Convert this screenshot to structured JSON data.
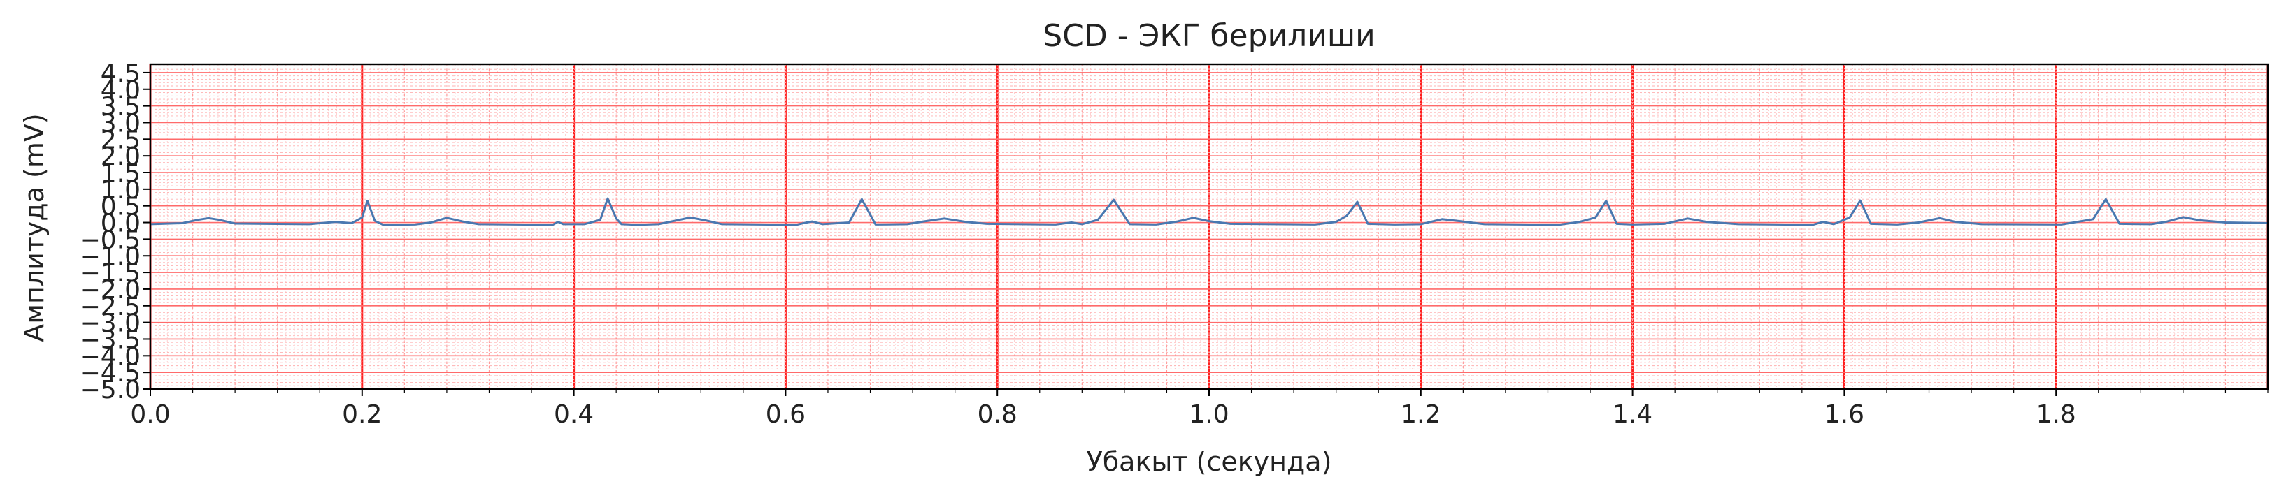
{
  "chart_data": {
    "type": "line",
    "title": "SCD - ЭКГ берилиши",
    "xlabel": "Убакыт (секунда)",
    "ylabel": "Амплитуда (mV)",
    "xlim": [
      0,
      2.0
    ],
    "ylim": [
      -5.0,
      4.75
    ],
    "grid": true,
    "x_ticks": [
      {
        "value": 0.0,
        "label": "0.0"
      },
      {
        "value": 0.2,
        "label": "0.2"
      },
      {
        "value": 0.4,
        "label": "0.4"
      },
      {
        "value": 0.6,
        "label": "0.6"
      },
      {
        "value": 0.8,
        "label": "0.8"
      },
      {
        "value": 1.0,
        "label": "1.0"
      },
      {
        "value": 1.2,
        "label": "1.2"
      },
      {
        "value": 1.4,
        "label": "1.4"
      },
      {
        "value": 1.6,
        "label": "1.6"
      },
      {
        "value": 1.8,
        "label": "1.8"
      }
    ],
    "y_ticks": [
      {
        "value": -5.0,
        "label": "−5.0"
      },
      {
        "value": -4.5,
        "label": "−4.5"
      },
      {
        "value": -4.0,
        "label": "−4.0"
      },
      {
        "value": -3.5,
        "label": "−3.5"
      },
      {
        "value": -3.0,
        "label": "−3.0"
      },
      {
        "value": -2.5,
        "label": "−2.5"
      },
      {
        "value": -2.0,
        "label": "−2.0"
      },
      {
        "value": -1.5,
        "label": "−1.5"
      },
      {
        "value": -1.0,
        "label": "−1.0"
      },
      {
        "value": -0.5,
        "label": "−0.5"
      },
      {
        "value": 0.0,
        "label": "0.0"
      },
      {
        "value": 0.5,
        "label": "0.5"
      },
      {
        "value": 1.0,
        "label": "1.0"
      },
      {
        "value": 1.5,
        "label": "1.5"
      },
      {
        "value": 2.0,
        "label": "2.0"
      },
      {
        "value": 2.5,
        "label": "2.5"
      },
      {
        "value": 3.0,
        "label": "3.0"
      },
      {
        "value": 3.5,
        "label": "3.5"
      },
      {
        "value": 4.0,
        "label": "4.0"
      },
      {
        "value": 4.5,
        "label": "4.5"
      }
    ],
    "series": [
      {
        "color": "#4a78b0",
        "x": [
          0.0,
          0.03,
          0.045,
          0.055,
          0.065,
          0.08,
          0.15,
          0.175,
          0.19,
          0.2,
          0.205,
          0.212,
          0.22,
          0.25,
          0.265,
          0.28,
          0.295,
          0.31,
          0.38,
          0.385,
          0.39,
          0.41,
          0.425,
          0.432,
          0.44,
          0.445,
          0.46,
          0.48,
          0.495,
          0.51,
          0.525,
          0.54,
          0.61,
          0.62,
          0.625,
          0.635,
          0.66,
          0.672,
          0.685,
          0.715,
          0.73,
          0.75,
          0.77,
          0.79,
          0.855,
          0.87,
          0.88,
          0.895,
          0.91,
          0.925,
          0.95,
          0.97,
          0.985,
          1.0,
          1.02,
          1.1,
          1.12,
          1.13,
          1.14,
          1.15,
          1.175,
          1.2,
          1.22,
          1.235,
          1.26,
          1.33,
          1.35,
          1.365,
          1.375,
          1.385,
          1.4,
          1.43,
          1.452,
          1.47,
          1.5,
          1.57,
          1.58,
          1.59,
          1.605,
          1.615,
          1.625,
          1.65,
          1.67,
          1.69,
          1.705,
          1.73,
          1.805,
          1.82,
          1.835,
          1.847,
          1.86,
          1.89,
          1.905,
          1.92,
          1.935,
          1.96,
          2.0
        ],
        "y": [
          -0.05,
          -0.02,
          0.08,
          0.13,
          0.08,
          -0.03,
          -0.05,
          0.02,
          -0.02,
          0.15,
          0.65,
          0.05,
          -0.07,
          -0.06,
          0.0,
          0.14,
          0.03,
          -0.05,
          -0.07,
          0.02,
          -0.05,
          -0.05,
          0.08,
          0.72,
          0.12,
          -0.05,
          -0.07,
          -0.05,
          0.05,
          0.15,
          0.06,
          -0.05,
          -0.07,
          0.0,
          0.03,
          -0.05,
          0.0,
          0.7,
          -0.06,
          -0.05,
          0.03,
          0.12,
          0.02,
          -0.04,
          -0.06,
          0.0,
          -0.05,
          0.08,
          0.68,
          -0.05,
          -0.06,
          0.03,
          0.14,
          0.04,
          -0.04,
          -0.06,
          0.02,
          0.2,
          0.62,
          -0.04,
          -0.06,
          -0.05,
          0.1,
          0.05,
          -0.05,
          -0.07,
          0.02,
          0.15,
          0.65,
          -0.04,
          -0.06,
          -0.04,
          0.12,
          0.02,
          -0.05,
          -0.07,
          0.02,
          -0.05,
          0.15,
          0.66,
          -0.04,
          -0.06,
          0.0,
          0.13,
          0.02,
          -0.05,
          -0.06,
          0.02,
          0.1,
          0.7,
          -0.04,
          -0.05,
          0.03,
          0.16,
          0.07,
          0.0,
          -0.02
        ]
      }
    ]
  }
}
